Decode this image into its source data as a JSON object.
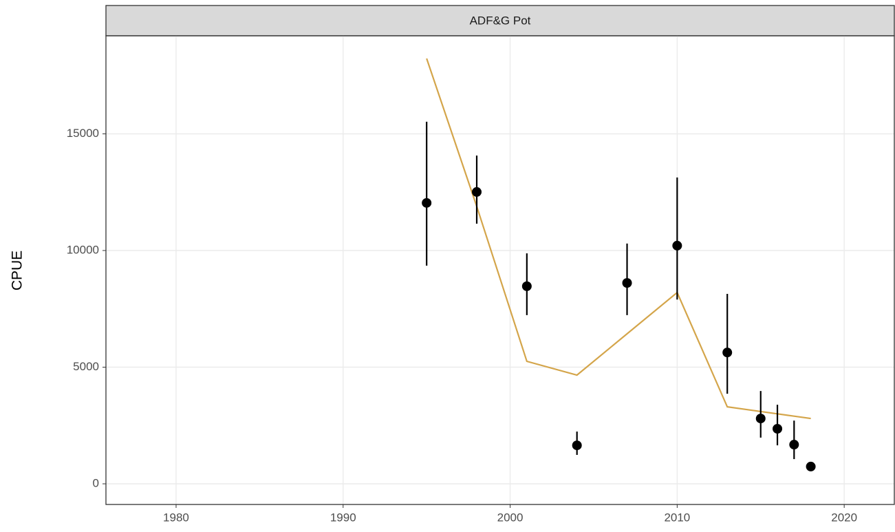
{
  "chart_data": {
    "type": "scatter",
    "panel_title": "ADF&G Pot",
    "y_label": "CPUE",
    "x": [
      1995,
      1998,
      2001,
      2004,
      2007,
      2010,
      2013,
      2015,
      2016,
      2017,
      2018
    ],
    "values": [
      12040,
      12510,
      8470,
      1650,
      8610,
      10210,
      5630,
      2800,
      2360,
      1680,
      740
    ],
    "lower": [
      9350,
      11150,
      7230,
      1240,
      7230,
      7900,
      3860,
      1980,
      1650,
      1060,
      600
    ],
    "upper": [
      15520,
      14070,
      9880,
      2240,
      10300,
      13130,
      8140,
      3980,
      3390,
      2710,
      880
    ],
    "fit": [
      18230,
      11890,
      5250,
      4660,
      6430,
      8200,
      3300,
      3100,
      3000,
      2900,
      2800
    ],
    "color": "#000000",
    "fit_color": "#d4a54a",
    "xlim": [
      1975.8,
      2023
    ],
    "xticks": [
      1980,
      1990,
      2000,
      2010,
      2020
    ],
    "ylim": [
      -885,
      19204
    ],
    "yticks": [
      0,
      5000,
      10000,
      15000
    ],
    "grid": true
  }
}
